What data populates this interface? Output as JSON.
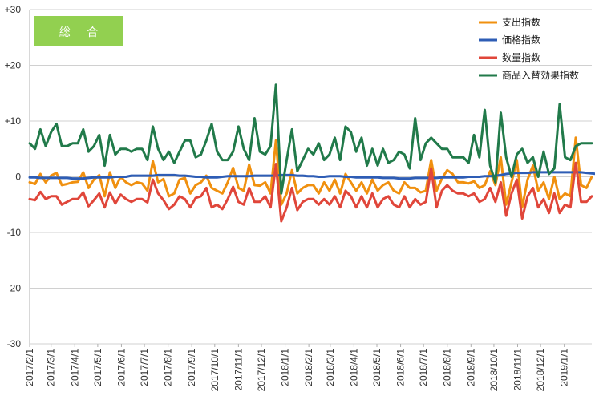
{
  "chart_data": {
    "type": "line",
    "title": "",
    "badge": "総 合",
    "badge_color": "#92d050",
    "xlabel": "",
    "ylabel": "",
    "ylim": [
      -30,
      30
    ],
    "yticks": [
      30,
      20,
      10,
      0,
      -10,
      -20,
      -30
    ],
    "ytick_labels": [
      "+30",
      "+20",
      "+10",
      "0",
      "-10",
      "-20",
      "-30"
    ],
    "grid": true,
    "legend_position": "top-right",
    "x_start": "2017/2/1",
    "x_step_days": 7,
    "month_labels": [
      "2017/2/1",
      "2017/3/1",
      "2017/4/1",
      "2017/5/1",
      "2017/6/1",
      "2017/7/1",
      "2017/8/1",
      "2017/9/1",
      "2017/10/1",
      "2017/11/1",
      "2017/12/1",
      "2018/1/1",
      "2018/2/1",
      "2018/3/1",
      "2018/4/1",
      "2018/5/1",
      "2018/6/1",
      "2018/7/1",
      "2018/8/1",
      "2018/9/1",
      "2018/10/1",
      "2018/11/1",
      "2018/12/1",
      "2019/1/1"
    ],
    "series": [
      {
        "name": "支出指数",
        "color": "#f0900f",
        "values": [
          -1.0,
          -1.3,
          0.5,
          -1.0,
          0.2,
          0.7,
          -1.5,
          -1.3,
          -1.0,
          -0.9,
          0.8,
          -2.0,
          -0.5,
          0.3,
          -3.5,
          0.8,
          -2.0,
          0.0,
          -1.0,
          -1.5,
          -1.0,
          -1.2,
          -2.5,
          2.8,
          -1.0,
          -0.4,
          -3.5,
          -3.0,
          -0.5,
          -0.2,
          -3.0,
          -1.5,
          -1.0,
          0.2,
          -2.0,
          -2.5,
          -3.0,
          -1.0,
          1.6,
          -2.0,
          -2.5,
          2.2,
          -1.5,
          -1.6,
          -1.0,
          -3.0,
          6.5,
          -5.0,
          -3.0,
          1.2,
          -3.0,
          -2.0,
          -1.5,
          -1.5,
          -3.0,
          -1.0,
          -2.5,
          -0.5,
          -3.0,
          0.5,
          -1.0,
          -2.5,
          -1.0,
          -3.0,
          -0.5,
          -2.5,
          -1.5,
          -1.0,
          -2.5,
          -3.0,
          -1.0,
          -2.0,
          -2.0,
          -2.8,
          -2.5,
          3.0,
          -2.5,
          -0.3,
          1.2,
          0.5,
          -1.0,
          -1.0,
          -1.2,
          -0.8,
          -2.0,
          -1.5,
          1.0,
          -1.5,
          3.5,
          -5.0,
          -1.0,
          3.0,
          -5.5,
          -0.5,
          2.0,
          -2.5,
          -1.0,
          -4.0,
          0.0,
          -4.0,
          -3.0,
          -3.5,
          7.0,
          -1.5,
          -2.0,
          0.0
        ]
      },
      {
        "name": "価格指数",
        "color": "#2e5db5",
        "values": [
          -0.1,
          -0.1,
          -0.2,
          -0.2,
          -0.2,
          -0.2,
          -0.2,
          -0.2,
          -0.3,
          -0.3,
          -0.3,
          -0.2,
          -0.1,
          -0.1,
          -0.1,
          -0.1,
          0.0,
          0.0,
          0.0,
          0.2,
          0.2,
          0.2,
          0.2,
          0.2,
          0.3,
          0.3,
          0.3,
          0.3,
          0.2,
          0.2,
          0.1,
          0.0,
          0.0,
          -0.1,
          -0.1,
          -0.1,
          0.0,
          0.1,
          0.1,
          0.1,
          0.1,
          0.1,
          0.2,
          0.2,
          0.2,
          0.2,
          0.2,
          0.3,
          0.3,
          0.3,
          0.2,
          0.2,
          0.1,
          0.1,
          0.0,
          0.0,
          0.1,
          0.1,
          0.1,
          0.0,
          0.0,
          -0.1,
          -0.1,
          -0.1,
          -0.1,
          -0.1,
          -0.2,
          -0.2,
          -0.2,
          -0.3,
          -0.3,
          -0.3,
          -0.2,
          -0.2,
          -0.2,
          -0.2,
          -0.2,
          -0.1,
          -0.1,
          -0.1,
          -0.1,
          -0.1,
          0.0,
          0.0,
          0.0,
          0.1,
          0.1,
          0.2,
          0.3,
          0.5,
          0.6,
          0.7,
          0.7,
          0.7,
          0.8,
          0.8,
          0.8,
          0.8,
          0.8,
          0.8,
          0.8,
          0.8,
          0.8,
          0.8,
          0.7,
          0.6,
          0.5
        ]
      },
      {
        "name": "数量指数",
        "color": "#e0463a",
        "values": [
          -4.0,
          -4.2,
          -2.7,
          -4.0,
          -3.5,
          -3.5,
          -5.0,
          -4.5,
          -4.0,
          -4.0,
          -2.8,
          -5.3,
          -4.2,
          -3.0,
          -5.5,
          -2.8,
          -4.8,
          -3.2,
          -4.0,
          -4.5,
          -4.0,
          -4.0,
          -4.6,
          -0.5,
          -3.0,
          -4.2,
          -5.8,
          -5.0,
          -3.5,
          -4.0,
          -5.5,
          -3.8,
          -3.5,
          -2.0,
          -5.5,
          -5.0,
          -5.8,
          -4.0,
          -1.8,
          -4.5,
          -5.0,
          -2.0,
          -4.5,
          -4.5,
          -3.5,
          -5.5,
          2.3,
          -8.0,
          -5.5,
          -2.0,
          -6.0,
          -4.5,
          -4.0,
          -4.0,
          -5.0,
          -4.0,
          -5.0,
          -3.5,
          -5.5,
          -2.5,
          -3.5,
          -5.5,
          -3.5,
          -5.5,
          -3.0,
          -5.5,
          -4.0,
          -3.5,
          -5.0,
          -5.5,
          -3.5,
          -5.5,
          -4.0,
          -5.0,
          -4.5,
          1.5,
          -5.5,
          -2.5,
          -1.5,
          -2.5,
          -3.0,
          -3.0,
          -3.5,
          -3.0,
          -4.5,
          -4.0,
          -2.0,
          -4.5,
          -1.0,
          -7.0,
          -3.0,
          -0.5,
          -7.5,
          -3.5,
          -2.0,
          -5.5,
          -4.0,
          -6.5,
          -3.0,
          -6.5,
          -5.0,
          -5.5,
          2.5,
          -4.5,
          -4.5,
          -3.5
        ]
      },
      {
        "name": "商品入替効果指数",
        "color": "#217a4a",
        "values": [
          6.0,
          5.0,
          8.5,
          5.5,
          8.0,
          9.5,
          5.5,
          5.5,
          6.0,
          6.0,
          8.5,
          4.5,
          5.5,
          7.5,
          2.0,
          7.5,
          4.0,
          5.0,
          5.0,
          4.5,
          5.0,
          5.0,
          3.0,
          9.0,
          5.0,
          3.0,
          4.5,
          2.5,
          4.5,
          6.5,
          6.5,
          3.5,
          4.0,
          6.5,
          9.5,
          4.5,
          3.0,
          3.0,
          4.5,
          9.0,
          5.0,
          3.0,
          10.5,
          4.5,
          4.0,
          5.5,
          16.5,
          -3.0,
          3.0,
          8.5,
          1.0,
          3.0,
          5.0,
          4.0,
          6.0,
          3.0,
          4.0,
          7.0,
          3.0,
          9.0,
          8.0,
          4.5,
          7.0,
          2.0,
          5.0,
          2.0,
          5.0,
          2.5,
          3.0,
          4.5,
          4.0,
          1.5,
          10.5,
          3.0,
          6.0,
          7.0,
          6.0,
          5.0,
          5.0,
          3.5,
          3.5,
          3.5,
          2.5,
          7.5,
          3.5,
          12.0,
          2.0,
          -1.0,
          11.5,
          3.5,
          0.0,
          4.0,
          5.0,
          2.5,
          3.5,
          0.0,
          4.5,
          0.5,
          1.5,
          13.0,
          3.5,
          3.0,
          5.5,
          6.0,
          6.0,
          6.0
        ]
      }
    ]
  }
}
